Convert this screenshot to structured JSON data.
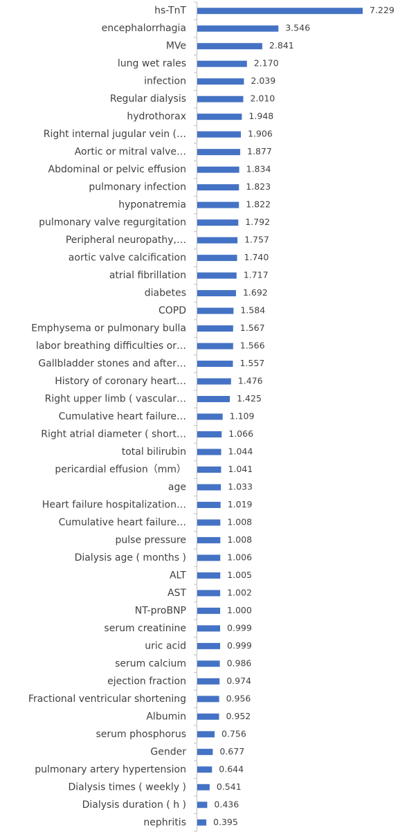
{
  "chart_data": {
    "type": "bar",
    "orientation": "horizontal",
    "color": "#4472c4",
    "categories": [
      "hs-TnT",
      "encephalorrhagia",
      "MVe",
      "lung wet rales",
      "infection",
      "Regular dialysis",
      "hydrothorax",
      "Right internal jugular vein (…",
      "Aortic or mitral valve…",
      "Abdominal or pelvic effusion",
      "pulmonary infection",
      "hyponatremia",
      "pulmonary valve regurgitation",
      "Peripheral neuropathy,…",
      "aortic valve calcification",
      "atrial fibrillation",
      "diabetes",
      "COPD",
      "Emphysema or pulmonary bulla",
      "labor breathing difficulties or…",
      "Gallbladder stones and after…",
      "History of coronary heart…",
      "Right upper limb ( vascular…",
      "Cumulative heart failure…",
      "Right atrial diameter ( short…",
      "total bilirubin",
      "pericardial effusion（mm）",
      "age",
      "Heart failure hospitalization…",
      "Cumulative heart failure…",
      "pulse pressure",
      "Dialysis age ( months )",
      "ALT",
      "AST",
      "NT-proBNP",
      "serum creatinine",
      "uric acid",
      "serum calcium",
      "ejection fraction",
      "Fractional ventricular shortening",
      "Albumin",
      "serum phosphorus",
      "Gender",
      "pulmonary artery hypertension",
      "Dialysis times ( weekly )",
      "Dialysis duration ( h )",
      "nephritis"
    ],
    "values": [
      7.229,
      3.546,
      2.841,
      2.17,
      2.039,
      2.01,
      1.948,
      1.906,
      1.877,
      1.834,
      1.823,
      1.822,
      1.792,
      1.757,
      1.74,
      1.717,
      1.692,
      1.584,
      1.567,
      1.566,
      1.557,
      1.476,
      1.425,
      1.109,
      1.066,
      1.044,
      1.041,
      1.033,
      1.019,
      1.008,
      1.008,
      1.006,
      1.005,
      1.002,
      1.0,
      0.999,
      0.999,
      0.986,
      0.974,
      0.956,
      0.952,
      0.756,
      0.677,
      0.644,
      0.541,
      0.436,
      0.395
    ],
    "value_labels": [
      "7.229",
      "3.546",
      "2.841",
      "2.170",
      "2.039",
      "2.010",
      "1.948",
      "1.906",
      "1.877",
      "1.834",
      "1.823",
      "1.822",
      "1.792",
      "1.757",
      "1.740",
      "1.717",
      "1.692",
      "1.584",
      "1.567",
      "1.566",
      "1.557",
      "1.476",
      "1.425",
      "1.109",
      "1.066",
      "1.044",
      "1.041",
      "1.033",
      "1.019",
      "1.008",
      "1.008",
      "1.006",
      "1.005",
      "1.002",
      "1.000",
      "0.999",
      "0.999",
      "0.986",
      "0.974",
      "0.956",
      "0.952",
      "0.756",
      "0.677",
      "0.644",
      "0.541",
      "0.436",
      "0.395"
    ]
  }
}
